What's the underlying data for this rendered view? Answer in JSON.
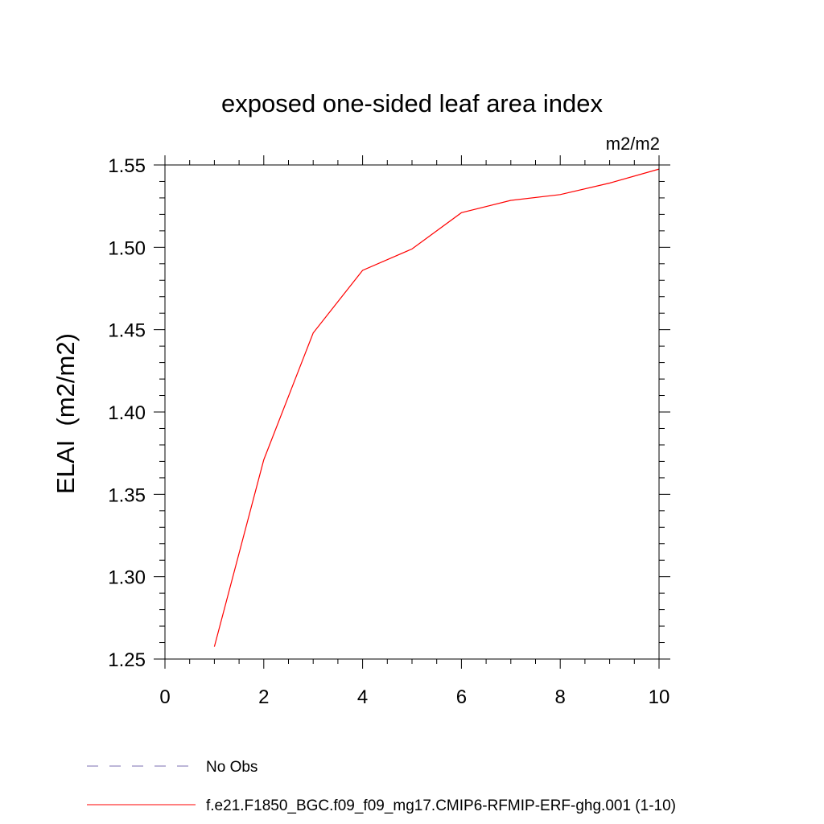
{
  "chart_data": {
    "type": "line",
    "title": "exposed one-sided leaf area index",
    "units_label": "m2/m2",
    "ylabel": "ELAI  (m2/m2)",
    "xlabel": "",
    "xlim": [
      0,
      10
    ],
    "ylim": [
      1.25,
      1.55
    ],
    "x_ticks": [
      0,
      2,
      4,
      6,
      8,
      10
    ],
    "x_tick_labels": [
      "0",
      "2",
      "4",
      "6",
      "8",
      "10"
    ],
    "y_ticks": [
      1.25,
      1.3,
      1.35,
      1.4,
      1.45,
      1.5,
      1.55
    ],
    "y_tick_labels": [
      "1.25",
      "1.30",
      "1.35",
      "1.40",
      "1.45",
      "1.50",
      "1.55"
    ],
    "grid": false,
    "legend_position": "bottom",
    "series": [
      {
        "name": "f.e21.F1850_BGC.f09_f09_mg17.CMIP6-RFMIP-ERF-ghg.001 (1-10)",
        "color": "#ff0000",
        "dashed": false,
        "x": [
          1,
          2,
          3,
          4,
          5,
          6,
          7,
          8,
          9,
          10
        ],
        "y": [
          1.2575,
          1.371,
          1.448,
          1.486,
          1.499,
          1.521,
          1.5285,
          1.532,
          1.539,
          1.5475
        ]
      },
      {
        "name": "No Obs",
        "color": "#7b6fb0",
        "dashed": true,
        "x": [],
        "y": []
      }
    ]
  }
}
